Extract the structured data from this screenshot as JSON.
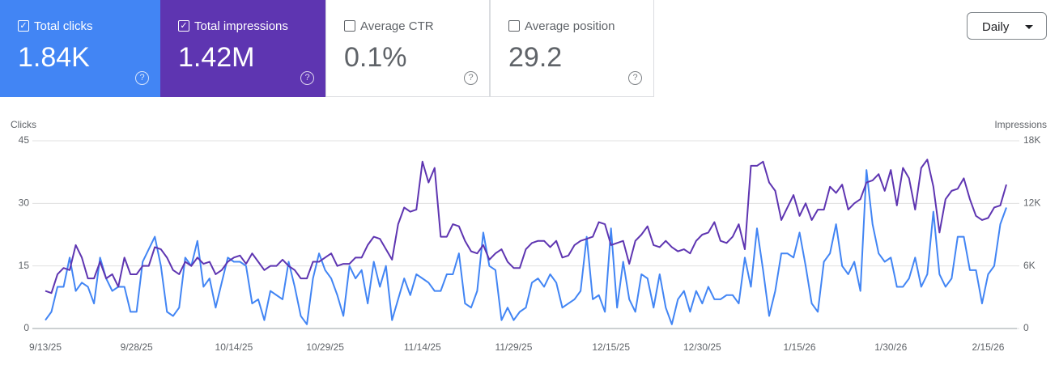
{
  "cards": [
    {
      "label": "Total clicks",
      "value": "1.84K",
      "checked": true,
      "color": "#4285f4"
    },
    {
      "label": "Total impressions",
      "value": "1.42M",
      "checked": true,
      "color": "#5e35b1"
    },
    {
      "label": "Average CTR",
      "value": "0.1%",
      "checked": false,
      "color": "#ffffff"
    },
    {
      "label": "Average position",
      "value": "29.2",
      "checked": false,
      "color": "#ffffff"
    }
  ],
  "dropdown": "Daily",
  "chart_data": {
    "type": "line",
    "y_label": "Clicks",
    "y2_label": "Impressions",
    "x": [
      "9/13/25",
      "9/14/25",
      "9/15/25",
      "9/16/25",
      "9/17/25",
      "9/18/25",
      "9/19/25",
      "9/20/25",
      "9/21/25",
      "9/22/25",
      "9/23/25",
      "9/24/25",
      "9/25/25",
      "9/26/25",
      "9/27/25",
      "9/28/25",
      "9/29/25",
      "9/30/25",
      "10/1/25",
      "10/2/25",
      "10/3/25",
      "10/4/25",
      "10/5/25",
      "10/6/25",
      "10/7/25",
      "10/8/25",
      "10/9/25",
      "10/10/25",
      "10/11/25",
      "10/12/25",
      "10/13/25",
      "10/14/25",
      "10/15/25",
      "10/16/25",
      "10/17/25",
      "10/18/25",
      "10/19/25",
      "10/20/25",
      "10/21/25",
      "10/22/25",
      "10/23/25",
      "10/24/25",
      "10/25/25",
      "10/26/25",
      "10/27/25",
      "10/28/25",
      "10/29/25",
      "10/30/25",
      "10/31/25",
      "11/1/25",
      "11/2/25",
      "11/3/25",
      "11/4/25",
      "11/5/25",
      "11/6/25",
      "11/7/25",
      "11/8/25",
      "11/9/25",
      "11/10/25",
      "11/11/25",
      "11/12/25",
      "11/13/25",
      "11/14/25",
      "11/15/25",
      "11/16/25",
      "11/17/25",
      "11/18/25",
      "11/19/25",
      "11/20/25",
      "11/21/25",
      "11/22/25",
      "11/23/25",
      "11/24/25",
      "11/25/25",
      "11/26/25",
      "11/27/25",
      "11/28/25",
      "11/29/25",
      "11/30/25",
      "12/1/25",
      "12/2/25",
      "12/3/25",
      "12/4/25",
      "12/5/25",
      "12/6/25",
      "12/7/25",
      "12/8/25",
      "12/9/25",
      "12/10/25",
      "12/11/25",
      "12/12/25",
      "12/13/25",
      "12/14/25",
      "12/15/25",
      "12/16/25",
      "12/17/25",
      "12/18/25",
      "12/19/25",
      "12/20/25",
      "12/21/25",
      "12/22/25",
      "12/23/25",
      "12/24/25",
      "12/25/25",
      "12/26/25",
      "12/27/25",
      "12/28/25",
      "12/29/25",
      "12/30/25",
      "12/31/25",
      "1/1/26",
      "1/2/26",
      "1/3/26",
      "1/4/26",
      "1/5/26",
      "1/6/26",
      "1/7/26",
      "1/8/26",
      "1/9/26",
      "1/10/26",
      "1/11/26",
      "1/12/26",
      "1/13/26",
      "1/14/26",
      "1/15/26",
      "1/16/26",
      "1/17/26",
      "1/18/26",
      "1/19/26",
      "1/20/26",
      "1/21/26",
      "1/22/26",
      "1/23/26",
      "1/24/26",
      "1/25/26",
      "1/26/26",
      "1/27/26",
      "1/28/26",
      "1/29/26",
      "1/30/26",
      "1/31/26",
      "2/1/26",
      "2/2/26",
      "2/3/26",
      "2/4/26",
      "2/5/26",
      "2/6/26",
      "2/7/26",
      "2/8/26",
      "2/9/26",
      "2/10/26",
      "2/11/26",
      "2/12/26",
      "2/13/26",
      "2/14/26",
      "2/15/26",
      "2/16/26",
      "2/17/26",
      "2/18/26"
    ],
    "xticks": [
      "9/13/25",
      "9/28/25",
      "10/14/25",
      "10/29/25",
      "11/14/25",
      "11/29/25",
      "12/15/25",
      "12/30/25",
      "1/15/26",
      "1/30/26",
      "2/15/26"
    ],
    "ylim": [
      0,
      45
    ],
    "yticks": [
      0,
      15,
      30,
      45
    ],
    "y2lim": [
      0,
      18000
    ],
    "y2ticks": [
      0,
      {
        "value": 6000,
        "label": "6K"
      },
      {
        "value": 12000,
        "label": "12K"
      },
      {
        "value": 18000,
        "label": "18K"
      }
    ],
    "grid": true,
    "series": [
      {
        "name": "Clicks",
        "color": "#4285f4",
        "values": [
          2,
          4,
          10,
          10,
          17,
          9,
          11,
          10,
          6,
          17,
          12,
          9,
          10,
          10,
          4,
          4,
          16,
          19,
          22,
          15,
          4,
          3,
          5,
          17,
          15,
          21,
          10,
          12,
          5,
          11,
          17,
          16,
          16,
          15,
          6,
          7,
          2,
          9,
          8,
          7,
          16,
          10,
          3,
          1,
          12,
          18,
          14,
          12,
          8,
          3,
          15,
          12,
          14,
          6,
          16,
          10,
          15,
          2,
          7,
          12,
          8,
          13,
          12,
          11,
          9,
          9,
          13,
          13,
          18,
          6,
          5,
          9,
          23,
          15,
          14,
          2,
          5,
          2,
          4,
          5,
          11,
          12,
          10,
          13,
          11,
          5,
          6,
          7,
          9,
          22,
          7,
          8,
          4,
          24,
          5,
          16,
          7,
          4,
          13,
          12,
          5,
          13,
          5,
          1,
          7,
          9,
          4,
          9,
          6,
          10,
          7,
          7,
          8,
          8,
          6,
          17,
          10,
          24,
          14,
          3,
          9,
          18,
          18,
          17,
          23,
          15,
          6,
          4,
          16,
          18,
          25,
          15,
          13,
          16,
          9,
          38,
          25,
          18,
          16,
          17,
          10,
          10,
          12,
          17,
          10,
          13,
          28,
          13,
          10,
          12,
          22,
          22,
          14,
          14,
          6,
          13,
          15,
          25,
          29
        ]
      },
      {
        "name": "Impressions",
        "color": "#5e35b1",
        "axis": "y2",
        "values": [
          3600,
          3400,
          5200,
          5800,
          5600,
          8000,
          6800,
          4800,
          4800,
          6400,
          4800,
          5200,
          4000,
          6800,
          5200,
          5200,
          6000,
          6000,
          7800,
          7600,
          6800,
          5600,
          5200,
          6400,
          6000,
          6800,
          6200,
          6400,
          5200,
          5600,
          6400,
          6800,
          7000,
          6200,
          7200,
          6400,
          5600,
          6000,
          6000,
          6600,
          6000,
          5600,
          4800,
          4800,
          6400,
          6400,
          6800,
          7200,
          6000,
          6200,
          6200,
          6800,
          6800,
          8000,
          8800,
          8600,
          7600,
          6600,
          10000,
          11600,
          11200,
          11400,
          16000,
          14000,
          15400,
          8800,
          8800,
          10000,
          9800,
          8400,
          7400,
          7200,
          8000,
          6600,
          7200,
          7600,
          6400,
          5800,
          5800,
          7600,
          8200,
          8400,
          8400,
          7800,
          8400,
          6800,
          7000,
          8000,
          8400,
          8600,
          8800,
          10200,
          10000,
          8000,
          8200,
          8400,
          6200,
          8400,
          9000,
          9800,
          8000,
          7800,
          8400,
          7800,
          7400,
          7600,
          7200,
          8400,
          9000,
          9200,
          10200,
          8400,
          8200,
          8800,
          10000,
          7600,
          15600,
          15600,
          16000,
          14000,
          13200,
          10400,
          11600,
          12800,
          10800,
          12000,
          10400,
          11400,
          11400,
          13600,
          13000,
          13800,
          11400,
          12000,
          12400,
          14000,
          14200,
          14800,
          13200,
          15200,
          11800,
          15400,
          14400,
          11400,
          15400,
          16200,
          13600,
          9200,
          12400,
          13200,
          13400,
          14400,
          12400,
          10800,
          10400,
          10600,
          11600,
          11800,
          13800
        ]
      }
    ]
  }
}
